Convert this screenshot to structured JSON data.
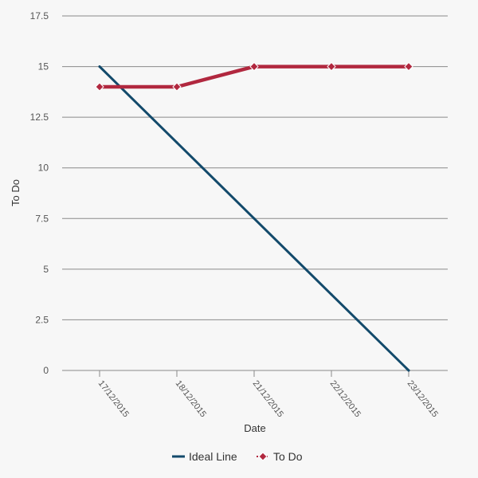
{
  "chart_data": {
    "type": "line",
    "title": "",
    "xlabel": "Date",
    "ylabel": "To Do",
    "ylim": [
      0,
      17.5
    ],
    "yticks": [
      "0",
      "2.5",
      "5",
      "7.5",
      "10",
      "12.5",
      "15",
      "17.5"
    ],
    "x": [
      "17/12/2015",
      "18/12/2015",
      "21/12/2015",
      "22/12/2015",
      "23/12/2015"
    ],
    "grid": true,
    "legend_position": "bottom-center",
    "series": [
      {
        "name": "Ideal Line",
        "values": [
          15,
          11.25,
          7.5,
          3.75,
          0
        ],
        "color": "#134a6b",
        "marker": "none"
      },
      {
        "name": "To Do",
        "values": [
          14,
          14,
          15,
          15,
          15
        ],
        "color": "#b1283f",
        "marker": "diamond"
      }
    ]
  }
}
